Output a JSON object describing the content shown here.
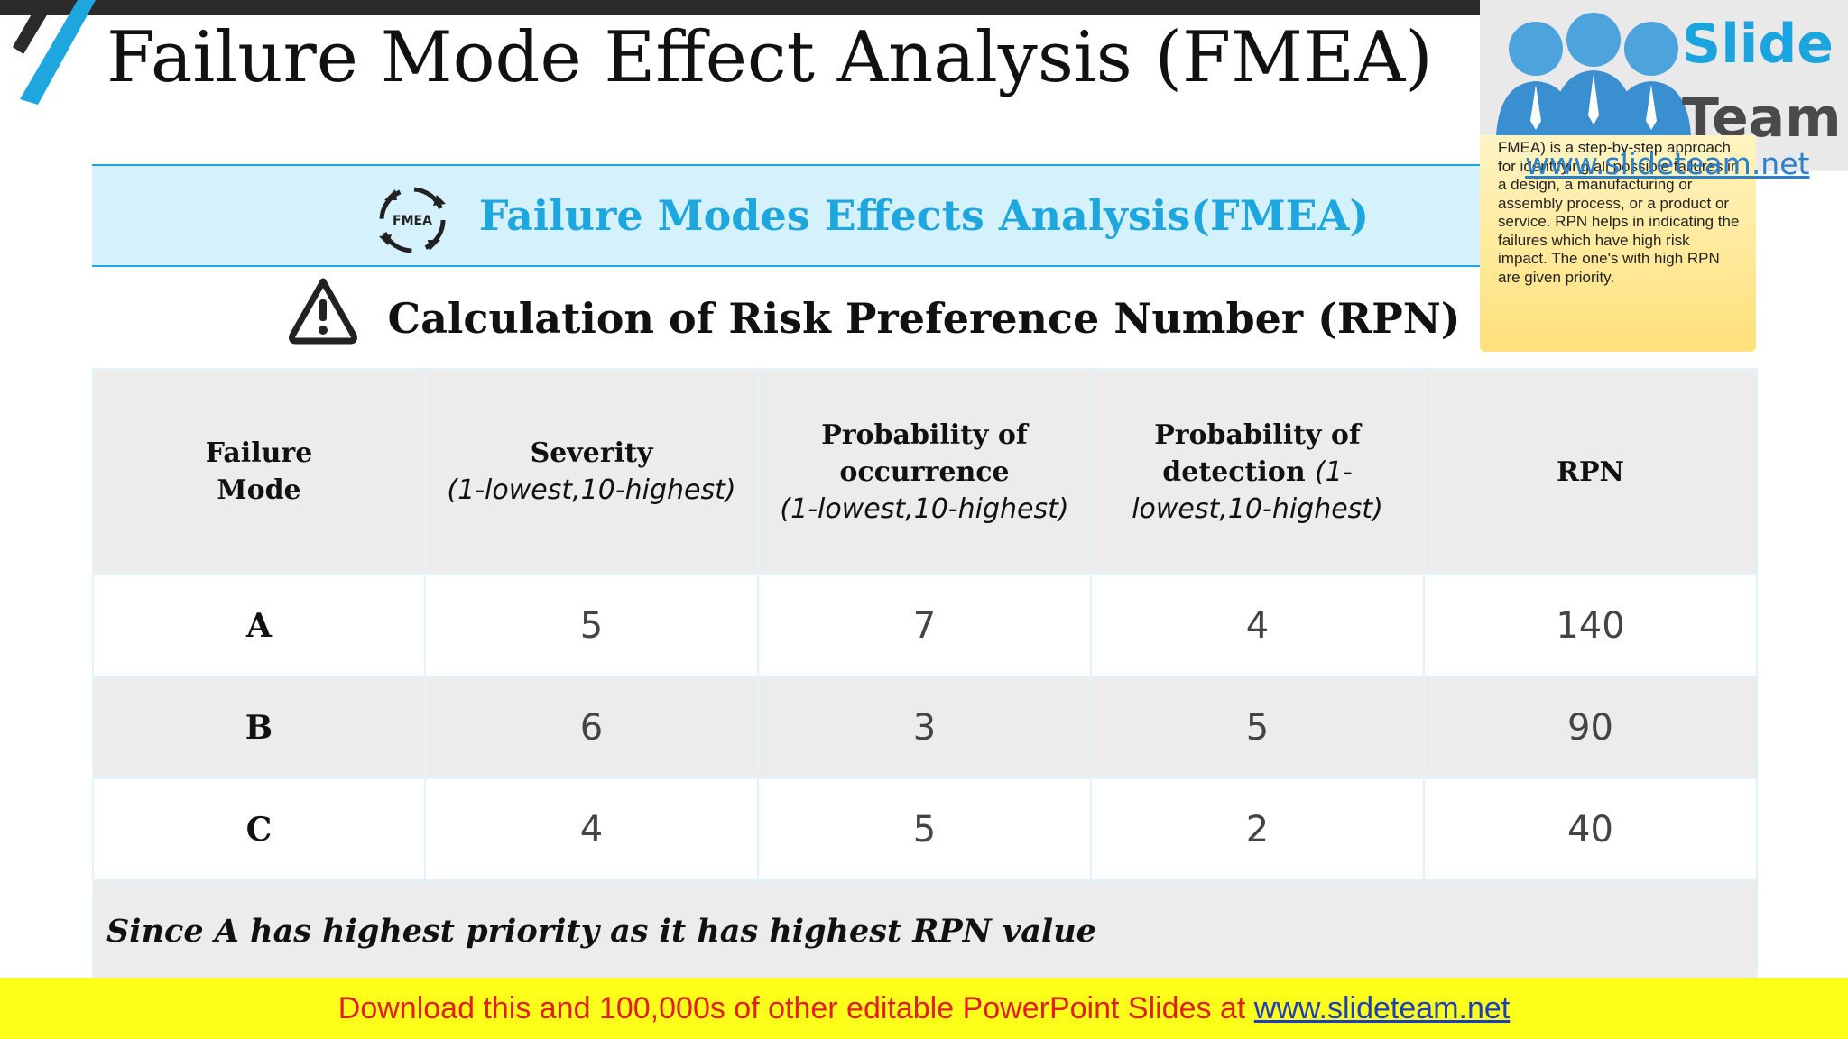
{
  "page": {
    "title": "Failure Mode Effect Analysis (FMEA)"
  },
  "banner": {
    "icon_label": "FMEA",
    "title": "Failure Modes Effects Analysis(FMEA)"
  },
  "subheading": {
    "title": "Calculation of Risk Preference Number (RPN)"
  },
  "table": {
    "headers": {
      "failure_mode": "Failure Mode",
      "severity": "Severity",
      "severity_range": "(1-lowest,10-highest)",
      "occurrence": "Probability of occurrence",
      "occurrence_range": "(1-lowest,10-highest)",
      "detection": "Probability of detection",
      "detection_range_1": "(1-",
      "detection_range_2": "lowest,10-highest)",
      "rpn": "RPN"
    },
    "rows": [
      {
        "mode": "A",
        "severity": "5",
        "occurrence": "7",
        "detection": "4",
        "rpn": "140"
      },
      {
        "mode": "B",
        "severity": "6",
        "occurrence": "3",
        "detection": "5",
        "rpn": "90"
      },
      {
        "mode": "C",
        "severity": "4",
        "occurrence": "5",
        "detection": "2",
        "rpn": "40"
      }
    ],
    "note": "Since A has highest priority as it has highest RPN value"
  },
  "logo": {
    "line1": "Slide",
    "line2": "Team",
    "url": "www.slideteam.net"
  },
  "tooltip": {
    "text": "FMEA) is a step-by-step approach for identifying all possible failures in a design, a manufacturing or assembly process, or a product or service. RPN helps in indicating the failures which have high risk impact. The one's with high RPN are given priority."
  },
  "footer": {
    "text": "Download this and 100,000s of other editable PowerPoint Slides at ",
    "link": "www.slideteam.net"
  },
  "colors": {
    "accent_blue": "#1ea7df",
    "banner_bg": "#d5f1fb",
    "footer_bg": "#fdff1a",
    "footer_text": "#e02020"
  }
}
